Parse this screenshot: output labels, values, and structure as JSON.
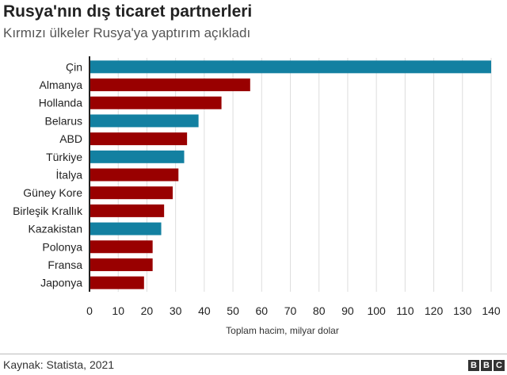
{
  "chart_data": {
    "type": "bar",
    "orientation": "horizontal",
    "title": "Rusya'nın dış ticaret partnerleri",
    "subtitle": "Kırmızı ülkeler Rusya'ya yaptırım açıkladı",
    "categories": [
      "Çin",
      "Almanya",
      "Hollanda",
      "Belarus",
      "ABD",
      "Türkiye",
      "İtalya",
      "Güney Kore",
      "Birleşik Krallık",
      "Kazakistan",
      "Polonya",
      "Fransa",
      "Japonya"
    ],
    "values": [
      140,
      56,
      46,
      38,
      34,
      33,
      31,
      29,
      26,
      25,
      22,
      22,
      19
    ],
    "sanctioned": [
      false,
      true,
      true,
      false,
      true,
      false,
      true,
      true,
      true,
      false,
      true,
      true,
      true
    ],
    "colors": {
      "sanctioned": "#990000",
      "other": "#1380A1"
    },
    "xlabel": "Toplam hacim, milyar dolar",
    "xlim": [
      0,
      140
    ],
    "xticks": [
      0,
      10,
      20,
      30,
      40,
      50,
      60,
      70,
      80,
      90,
      100,
      110,
      120,
      130,
      140
    ],
    "grid": true
  },
  "footer": {
    "source": "Kaynak: Statista, 2021",
    "logo": "BBC"
  }
}
